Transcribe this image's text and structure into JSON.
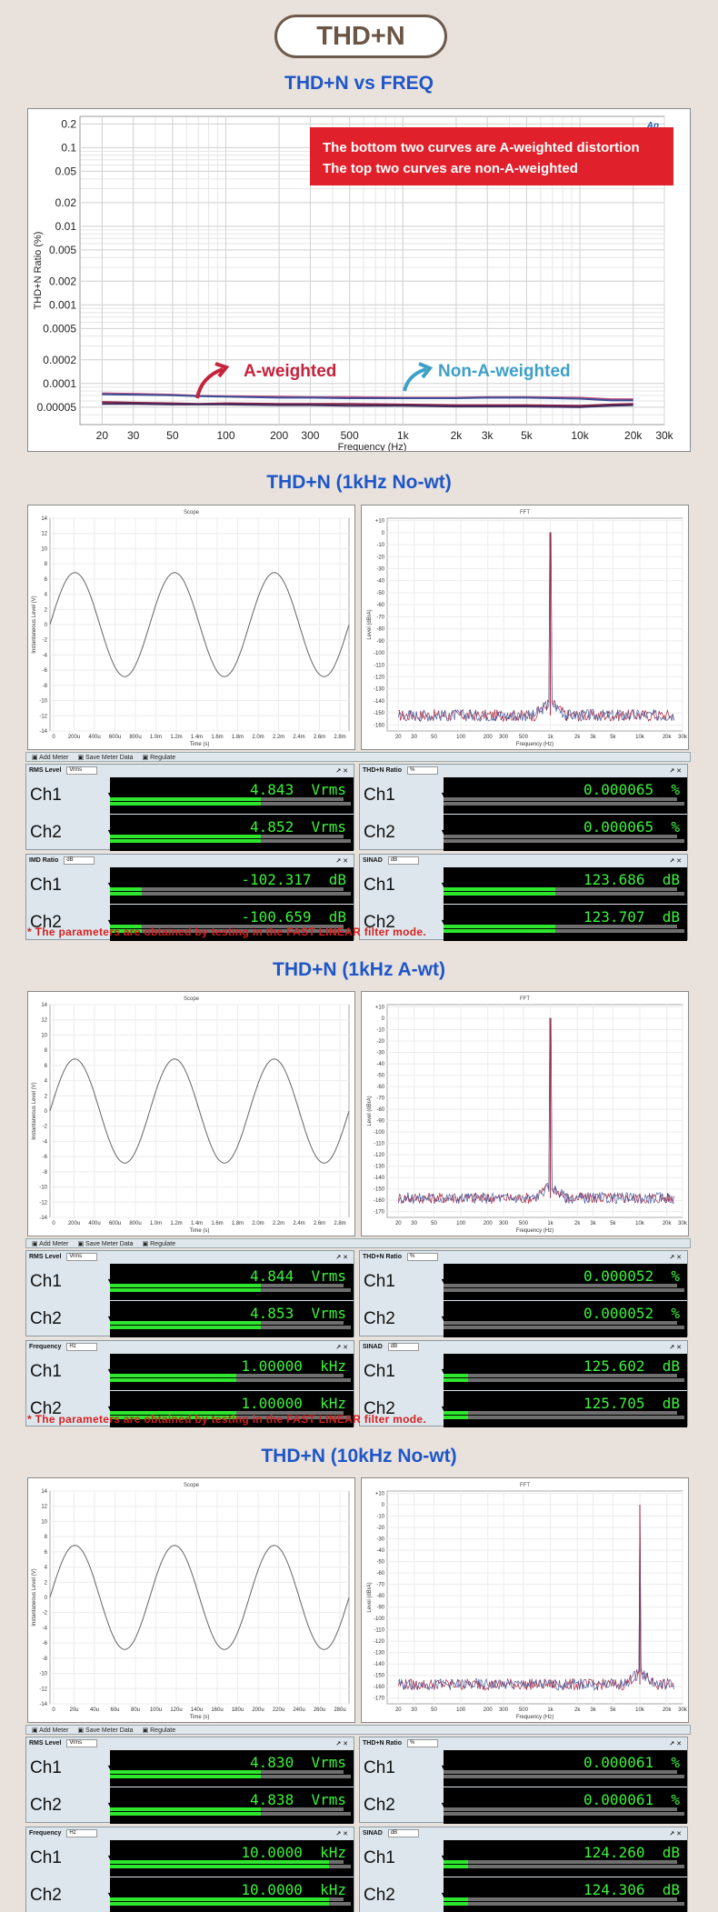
{
  "header": {
    "title": "THD+N"
  },
  "colors": {
    "a_weighted": "#c5223b",
    "non_a_weighted": "#3ea0c9",
    "title_blue": "#1e56c8",
    "note_red": "#d62020",
    "meter_green": "#3cf23c"
  },
  "chart_data": [
    {
      "type": "line",
      "title": "THD+N vs FREQ",
      "xlabel": "Frequency (Hz)",
      "ylabel": "THD+N Ratio (%)",
      "xscale": "log",
      "yscale": "log",
      "xlim": [
        15,
        30000
      ],
      "ylim": [
        3e-05,
        0.25
      ],
      "xticks": [
        "20",
        "30",
        "50",
        "100",
        "200",
        "300",
        "500",
        "1k",
        "2k",
        "3k",
        "5k",
        "10k",
        "20k",
        "30k"
      ],
      "yticks": [
        "0.2",
        "0.1",
        "0.05",
        "0.02",
        "0.01",
        "0.005",
        "0.002",
        "0.001",
        "0.0005",
        "0.0002",
        "0.0001",
        "0.00005"
      ],
      "grid": true,
      "brand": "Ap",
      "legend_box": {
        "line1": "The bottom two curves are A-weighted distortion",
        "line2": "The top two curves are non-A-weighted"
      },
      "annotations": {
        "a_weighted": "A-weighted",
        "non_a_weighted": "Non-A-weighted"
      },
      "x": [
        20,
        30,
        50,
        70,
        100,
        200,
        300,
        500,
        1000,
        2000,
        3000,
        5000,
        10000,
        15000,
        20000
      ],
      "series": [
        {
          "values": [
            7.5e-05,
            7.4e-05,
            7.2e-05,
            7e-05,
            6.9e-05,
            6.8e-05,
            6.7e-05,
            6.7e-05,
            6.6e-05,
            6.6e-05,
            6.7e-05,
            6.7e-05,
            6.6e-05,
            6.3e-05,
            6.3e-05
          ]
        },
        {
          "values": [
            7.3e-05,
            7.2e-05,
            7.1e-05,
            6.9e-05,
            6.8e-05,
            6.6e-05,
            6.6e-05,
            6.5e-05,
            6.5e-05,
            6.5e-05,
            6.6e-05,
            6.6e-05,
            6.4e-05,
            6.1e-05,
            6.1e-05
          ]
        },
        {
          "values": [
            5.8e-05,
            5.7e-05,
            5.6e-05,
            5.5e-05,
            5.6e-05,
            5.5e-05,
            5.5e-05,
            5.5e-05,
            5.4e-05,
            5.3e-05,
            5.3e-05,
            5.3e-05,
            5.2e-05,
            5.4e-05,
            5.5e-05
          ]
        },
        {
          "values": [
            5.5e-05,
            5.5e-05,
            5.4e-05,
            5.4e-05,
            5.4e-05,
            5.3e-05,
            5.3e-05,
            5.2e-05,
            5.2e-05,
            5.1e-05,
            5.1e-05,
            5.1e-05,
            5e-05,
            5.2e-05,
            5.3e-05
          ]
        }
      ]
    }
  ],
  "sections": [
    {
      "title": "THD+N (1kHz No-wt)",
      "scope": {
        "title": "Scope",
        "xlabel": "Time (s)",
        "ylabel": "Instantaneous Level (V)",
        "yticks": [
          "14",
          "12",
          "10",
          "8",
          "6",
          "4",
          "2",
          "0",
          "-2",
          "-4",
          "-6",
          "-8",
          "-10",
          "-12",
          "-14"
        ],
        "xticks": [
          "0",
          "200u",
          "400u",
          "600u",
          "800u",
          "1.0m",
          "1.2m",
          "1.4m",
          "1.6m",
          "1.8m",
          "2.0m",
          "2.2m",
          "2.4m",
          "2.6m",
          "2.8m"
        ],
        "amplitude": 6.85,
        "cycles": 3
      },
      "fft": {
        "title": "FFT",
        "xlabel": "Frequency (Hz)",
        "ylabel": "Level (dBrA)",
        "yticks": [
          "+10",
          "0",
          "-10",
          "-20",
          "-30",
          "-40",
          "-50",
          "-60",
          "-70",
          "-80",
          "-90",
          "-100",
          "-110",
          "-120",
          "-130",
          "-140",
          "-150",
          "-160"
        ],
        "xticks": [
          "20",
          "30",
          "50",
          "100",
          "200",
          "300",
          "500",
          "1k",
          "2k",
          "3k",
          "5k",
          "10k",
          "20k",
          "30k"
        ],
        "ymin": -165,
        "ymax": 12,
        "fundamental_hz": 1000,
        "noise_floor": -152
      },
      "toolbar": {
        "add_meter": "Add Meter",
        "save_meter_data": "Save Meter Data",
        "regulate": "Regulate"
      },
      "meters": [
        {
          "name": "RMS Level",
          "unit_select": "Vrms",
          "rows": [
            {
              "ch": "Ch1",
              "value": "4.843",
              "unit": "Vrms",
              "fill": 0.62
            },
            {
              "ch": "Ch2",
              "value": "4.852",
              "unit": "Vrms",
              "fill": 0.62
            }
          ]
        },
        {
          "name": "THD+N Ratio",
          "unit_select": "%",
          "rows": [
            {
              "ch": "Ch1",
              "value": "0.000065",
              "unit": "%",
              "fill": 0.0
            },
            {
              "ch": "Ch2",
              "value": "0.000065",
              "unit": "%",
              "fill": 0.0
            }
          ]
        },
        {
          "name": "IMD Ratio",
          "unit_select": "dB",
          "rows": [
            {
              "ch": "Ch1",
              "value": "-102.317",
              "unit": "dB",
              "fill": 0.13
            },
            {
              "ch": "Ch2",
              "value": "-100.659",
              "unit": "dB",
              "fill": 0.13
            }
          ]
        },
        {
          "name": "SINAD",
          "unit_select": "dB",
          "rows": [
            {
              "ch": "Ch1",
              "value": "123.686",
              "unit": "dB",
              "fill": 0.46
            },
            {
              "ch": "Ch2",
              "value": "123.707",
              "unit": "dB",
              "fill": 0.46
            }
          ]
        }
      ],
      "note": "* The parameters are obtained by testing in the FAST LINEAR filter mode."
    },
    {
      "title": "THD+N (1kHz A-wt)",
      "scope": {
        "title": "Scope",
        "xlabel": "Time (s)",
        "ylabel": "Instantaneous Level (V)",
        "yticks": [
          "14",
          "12",
          "10",
          "8",
          "6",
          "4",
          "2",
          "0",
          "-2",
          "-4",
          "-6",
          "-8",
          "-10",
          "-12",
          "-14"
        ],
        "xticks": [
          "0",
          "200u",
          "400u",
          "600u",
          "800u",
          "1.0m",
          "1.2m",
          "1.4m",
          "1.6m",
          "1.8m",
          "2.0m",
          "2.2m",
          "2.4m",
          "2.6m",
          "2.8m"
        ],
        "amplitude": 6.85,
        "cycles": 3
      },
      "fft": {
        "title": "FFT",
        "xlabel": "Frequency (Hz)",
        "ylabel": "Level (dBrA)",
        "yticks": [
          "+10",
          "0",
          "-10",
          "-20",
          "-30",
          "-40",
          "-50",
          "-60",
          "-70",
          "-80",
          "-90",
          "-100",
          "-110",
          "-120",
          "-130",
          "-140",
          "-150",
          "-160",
          "-170"
        ],
        "xticks": [
          "20",
          "30",
          "50",
          "100",
          "200",
          "300",
          "500",
          "1k",
          "2k",
          "3k",
          "5k",
          "10k",
          "20k",
          "30k"
        ],
        "ymin": -175,
        "ymax": 12,
        "fundamental_hz": 1000,
        "noise_floor": -158
      },
      "toolbar": {
        "add_meter": "Add Meter",
        "save_meter_data": "Save Meter Data",
        "regulate": "Regulate"
      },
      "meters": [
        {
          "name": "RMS Level",
          "unit_select": "Vrms",
          "rows": [
            {
              "ch": "Ch1",
              "value": "4.844",
              "unit": "Vrms",
              "fill": 0.62
            },
            {
              "ch": "Ch2",
              "value": "4.853",
              "unit": "Vrms",
              "fill": 0.62
            }
          ]
        },
        {
          "name": "THD+N Ratio",
          "unit_select": "%",
          "rows": [
            {
              "ch": "Ch1",
              "value": "0.000052",
              "unit": "%",
              "fill": 0.0
            },
            {
              "ch": "Ch2",
              "value": "0.000052",
              "unit": "%",
              "fill": 0.0
            }
          ]
        },
        {
          "name": "Frequency",
          "unit_select": "Hz",
          "rows": [
            {
              "ch": "Ch1",
              "value": "1.00000",
              "unit": "kHz",
              "fill": 0.52
            },
            {
              "ch": "Ch2",
              "value": "1.00000",
              "unit": "kHz",
              "fill": 0.52
            }
          ]
        },
        {
          "name": "SINAD",
          "unit_select": "dB",
          "rows": [
            {
              "ch": "Ch1",
              "value": "125.602",
              "unit": "dB",
              "fill": 0.1
            },
            {
              "ch": "Ch2",
              "value": "125.705",
              "unit": "dB",
              "fill": 0.1
            }
          ]
        }
      ],
      "note": "* The parameters are obtained by testing in the FAST LINEAR filter mode."
    },
    {
      "title": "THD+N (10kHz No-wt)",
      "scope": {
        "title": "Scope",
        "xlabel": "Time (s)",
        "ylabel": "Instantaneous Level (V)",
        "yticks": [
          "14",
          "12",
          "10",
          "8",
          "6",
          "4",
          "2",
          "0",
          "-2",
          "-4",
          "-6",
          "-8",
          "-10",
          "-12",
          "-14"
        ],
        "xticks": [
          "0",
          "20u",
          "40u",
          "60u",
          "80u",
          "100u",
          "120u",
          "140u",
          "160u",
          "180u",
          "200u",
          "220u",
          "240u",
          "260u",
          "280u"
        ],
        "amplitude": 6.85,
        "cycles": 3
      },
      "fft": {
        "title": "FFT",
        "xlabel": "Frequency (Hz)",
        "ylabel": "Level (dBrA)",
        "yticks": [
          "+10",
          "0",
          "-10",
          "-20",
          "-30",
          "-40",
          "-50",
          "-60",
          "-70",
          "-80",
          "-90",
          "-100",
          "-110",
          "-120",
          "-130",
          "-140",
          "-150",
          "-160",
          "-170"
        ],
        "xticks": [
          "20",
          "30",
          "50",
          "100",
          "200",
          "300",
          "500",
          "1k",
          "2k",
          "3k",
          "5k",
          "10k",
          "20k",
          "30k"
        ],
        "ymin": -175,
        "ymax": 12,
        "fundamental_hz": 10000,
        "noise_floor": -158
      },
      "toolbar": {
        "add_meter": "Add Meter",
        "save_meter_data": "Save Meter Data",
        "regulate": "Regulate"
      },
      "meters": [
        {
          "name": "RMS Level",
          "unit_select": "Vrms",
          "rows": [
            {
              "ch": "Ch1",
              "value": "4.830",
              "unit": "Vrms",
              "fill": 0.62
            },
            {
              "ch": "Ch2",
              "value": "4.838",
              "unit": "Vrms",
              "fill": 0.62
            }
          ]
        },
        {
          "name": "THD+N Ratio",
          "unit_select": "%",
          "rows": [
            {
              "ch": "Ch1",
              "value": "0.000061",
              "unit": "%",
              "fill": 0.0
            },
            {
              "ch": "Ch2",
              "value": "0.000061",
              "unit": "%",
              "fill": 0.0
            }
          ]
        },
        {
          "name": "Frequency",
          "unit_select": "Hz",
          "rows": [
            {
              "ch": "Ch1",
              "value": "10.0000",
              "unit": "kHz",
              "fill": 0.9
            },
            {
              "ch": "Ch2",
              "value": "10.0000",
              "unit": "kHz",
              "fill": 0.9
            }
          ]
        },
        {
          "name": "SINAD",
          "unit_select": "dB",
          "rows": [
            {
              "ch": "Ch1",
              "value": "124.260",
              "unit": "dB",
              "fill": 0.1
            },
            {
              "ch": "Ch2",
              "value": "124.306",
              "unit": "dB",
              "fill": 0.1
            }
          ]
        }
      ]
    }
  ]
}
